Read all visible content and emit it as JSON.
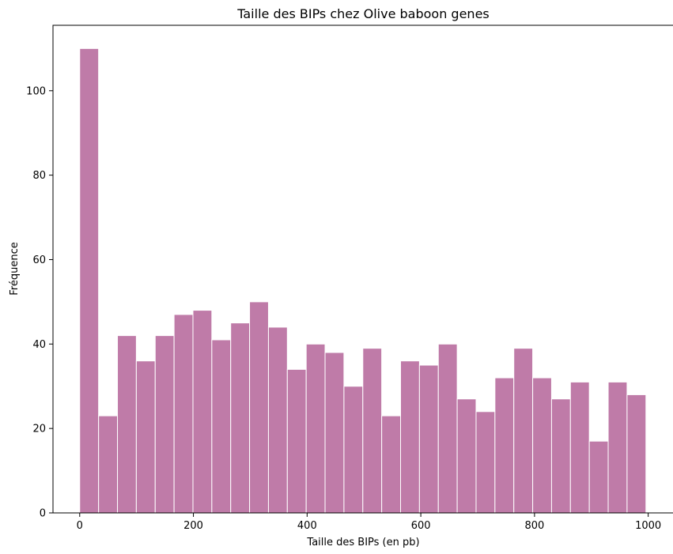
{
  "chart_data": {
    "type": "bar",
    "title": "Taille des BIPs chez Olive baboon genes",
    "xlabel": "Taille des BIPs (en pb)",
    "ylabel": "Fréquence",
    "bin_width": 33.2,
    "bins_start": [
      0,
      33.2,
      66.4,
      99.6,
      132.8,
      166,
      199.2,
      232.4,
      265.6,
      298.8,
      332,
      365.2,
      398.4,
      431.6,
      464.8,
      498,
      531.2,
      564.4,
      597.6,
      630.8,
      664,
      697.2,
      730.4,
      763.6,
      796.8,
      830,
      863.2,
      896.4,
      929.6,
      962.8
    ],
    "values": [
      110,
      23,
      42,
      36,
      42,
      47,
      48,
      41,
      45,
      50,
      44,
      34,
      40,
      38,
      30,
      39,
      23,
      36,
      35,
      40,
      27,
      24,
      32,
      39,
      32,
      27,
      31,
      17,
      31,
      28
    ],
    "xlim": [
      -47,
      1045
    ],
    "ylim": [
      0,
      115.5
    ],
    "xticks": [
      0,
      200,
      400,
      600,
      800,
      1000
    ],
    "yticks": [
      0,
      20,
      40,
      60,
      80,
      100
    ],
    "bar_color": "#bf7ba8",
    "edge_color": "#ffffff",
    "grid": false,
    "legend": "none"
  }
}
